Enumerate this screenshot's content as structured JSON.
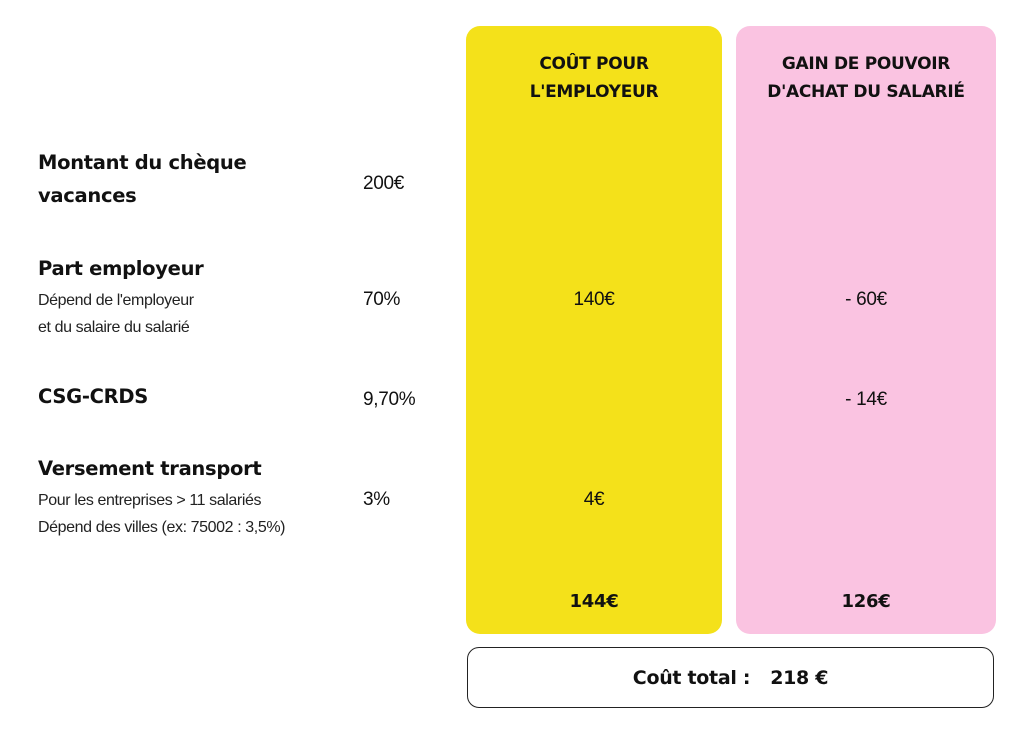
{
  "columns": {
    "employer": {
      "title_line1": "COÛT POUR",
      "title_line2": "L'EMPLOYEUR",
      "color": "#f4e11a"
    },
    "employee": {
      "title_line1": "GAIN DE POUVOIR",
      "title_line2": "D'ACHAT DU SALARIÉ",
      "color": "#fac3e1"
    }
  },
  "rows": [
    {
      "title_line1": "Montant du chèque",
      "title_line2": "vacances",
      "value": "200€",
      "employer": "",
      "employee": ""
    },
    {
      "title": "Part employeur",
      "sub_line1": "Dépend de l'employeur",
      "sub_line2": "et du salaire du salarié",
      "value": "70%",
      "employer": "140€",
      "employee": "- 60€"
    },
    {
      "title": "CSG-CRDS",
      "value": "9,70%",
      "employer": "",
      "employee": "- 14€"
    },
    {
      "title": "Versement transport",
      "sub_line1": "Pour les entreprises > 11 salariés",
      "sub_line2": "Dépend des villes (ex: 75002 : 3,5%)",
      "value": "3%",
      "employer": "4€",
      "employee": ""
    }
  ],
  "totals": {
    "employer": "144€",
    "employee": "126€"
  },
  "total_cost": {
    "label": "Coût total :",
    "value": "218 €"
  }
}
